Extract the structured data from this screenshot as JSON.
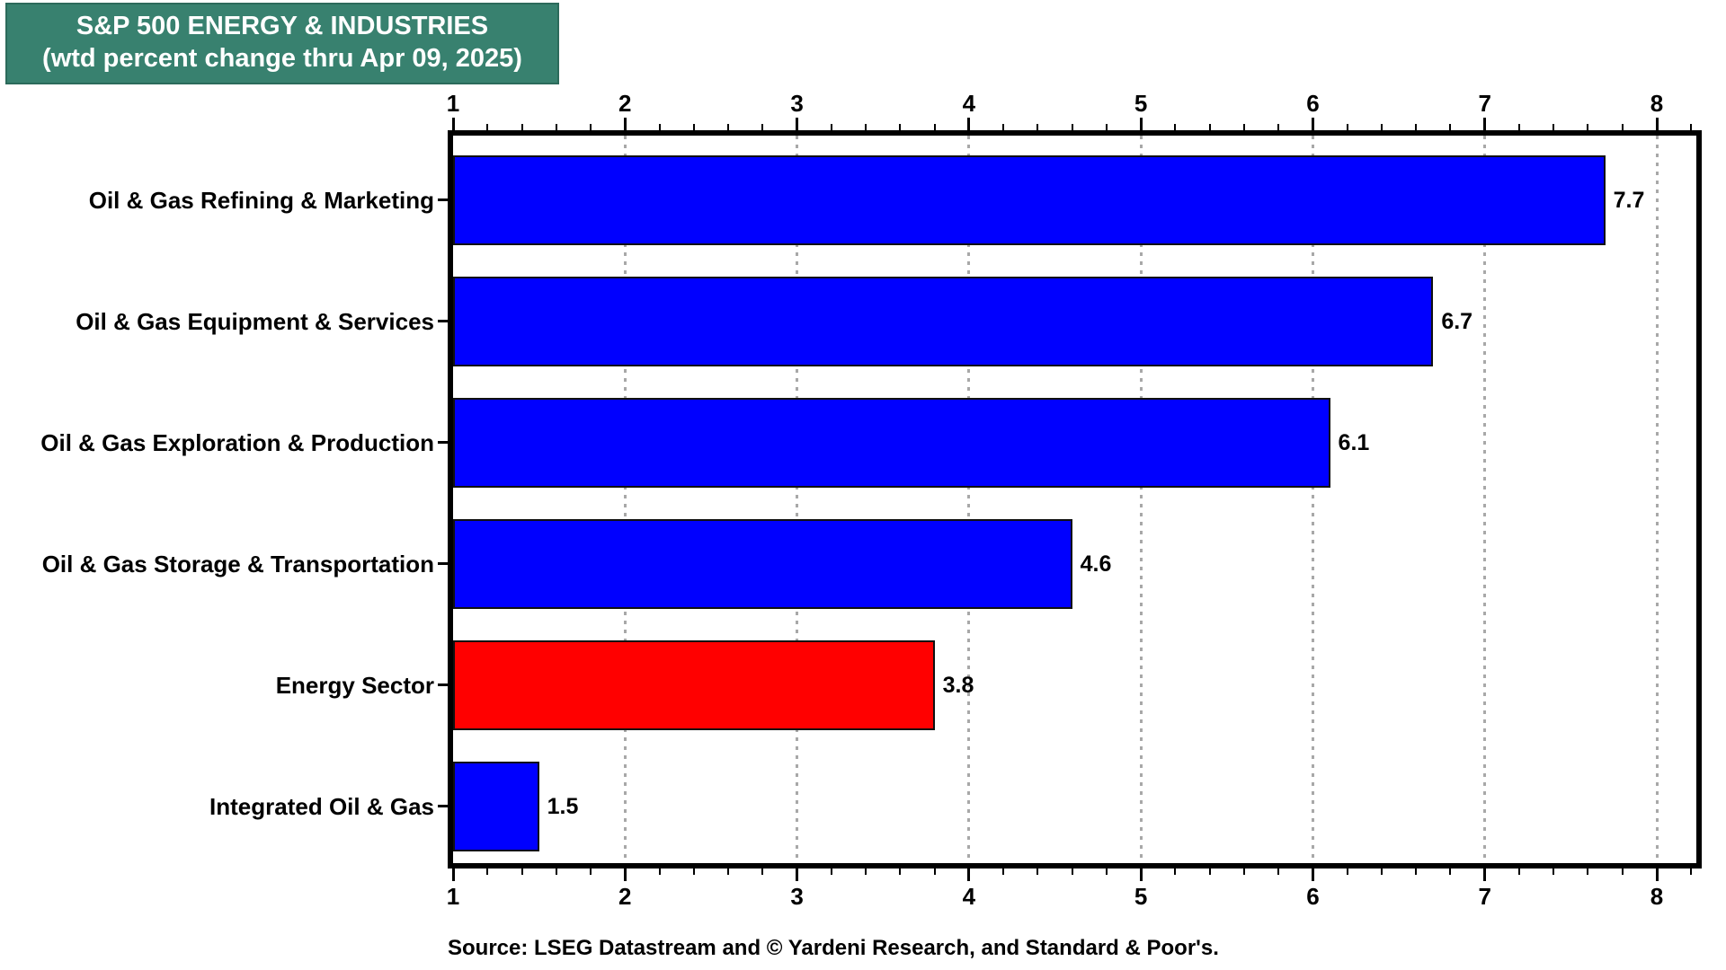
{
  "title": {
    "line1": "S&P 500 ENERGY & INDUSTRIES",
    "line2": "(wtd percent change thru Apr 09, 2025)"
  },
  "source": "Source: LSEG Datastream and © Yardeni Research, and Standard & Poor's.",
  "colors": {
    "title_bg": "#38816F",
    "title_text": "#ffffff",
    "bar_blue": "#0000ff",
    "bar_red": "#ff0000",
    "bar_border": "#101010",
    "grid": "#a8a8a8",
    "axis": "#000000"
  },
  "chart_data": {
    "type": "bar",
    "orientation": "horizontal",
    "title": "S&P 500 ENERGY & INDUSTRIES (wtd percent change thru Apr 09, 2025)",
    "categories": [
      "Oil & Gas Refining & Marketing",
      "Oil & Gas Equipment & Services",
      "Oil & Gas Exploration & Production",
      "Oil & Gas Storage & Transportation",
      "Energy Sector",
      "Integrated Oil & Gas"
    ],
    "values": [
      7.7,
      6.7,
      6.1,
      4.6,
      3.8,
      1.5
    ],
    "value_labels": [
      "7.7",
      "6.7",
      "6.1",
      "4.6",
      "3.8",
      "1.5"
    ],
    "bar_colors": [
      "#0000ff",
      "#0000ff",
      "#0000ff",
      "#0000ff",
      "#ff0000",
      "#0000ff"
    ],
    "highlighted_category": "Energy Sector",
    "xlabel": "",
    "ylabel": "",
    "xlim": [
      1,
      8.23
    ],
    "x_major_ticks": [
      1,
      2,
      3,
      4,
      5,
      6,
      7,
      8
    ],
    "x_minor_tick_step": 0.2,
    "grid": "vertical dotted gridlines at integer ticks",
    "axis_positions": "x-axis tick labels on both top and bottom",
    "legend_position": "none"
  }
}
